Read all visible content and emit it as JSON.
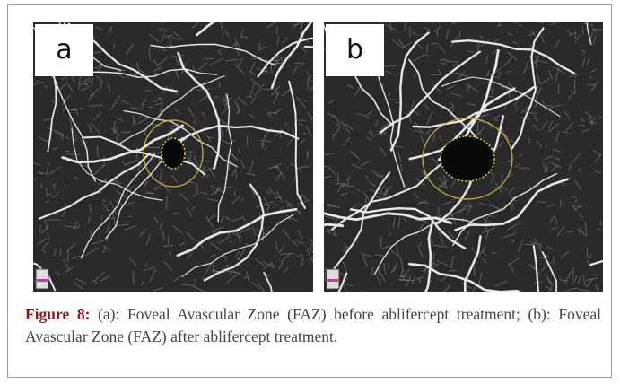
{
  "panels": [
    {
      "label": "a"
    },
    {
      "label": "b"
    }
  ],
  "caption": {
    "label": "Figure 8:",
    "text": "(a): Foveal Avascular Zone (FAZ) before ablifercept treatment; (b): Foveal Avascular Zone (FAZ) after ablifercept treatment."
  }
}
